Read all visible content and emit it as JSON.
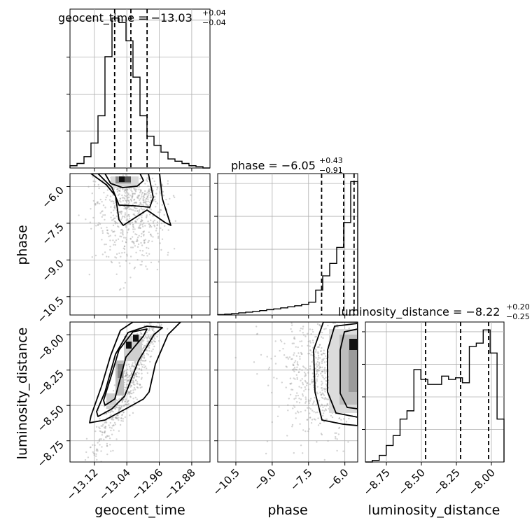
{
  "chart_data": {
    "type": "corner",
    "parameters": [
      "geocent_time",
      "phase",
      "luminosity_distance"
    ],
    "titles": [
      {
        "param": "geocent_time",
        "text": "geocent_time = −13.03",
        "upper": "+0.04",
        "lower": "−0.04"
      },
      {
        "param": "phase",
        "text": "phase = −6.05",
        "upper": "+0.43",
        "lower": "−0.91"
      },
      {
        "param": "luminosity_distance",
        "text": "luminosity_distance = −8.22",
        "upper": "+0.20",
        "lower": "−0.25"
      }
    ],
    "ranges": {
      "geocent_time": [
        -13.18,
        -12.835
      ],
      "phase": [
        -11.25,
        -5.47
      ],
      "luminosity_distance": [
        -8.9,
        -7.91
      ]
    },
    "ticks": {
      "geocent_time": {
        "values": [
          -13.12,
          -13.04,
          -12.96,
          -12.88
        ],
        "labels": [
          "−13.12",
          "−13.04",
          "−12.96",
          "−12.88"
        ]
      },
      "phase": {
        "values": [
          -10.5,
          -9.0,
          -7.5,
          -6.0
        ],
        "labels": [
          "−10.5",
          "−9.0",
          "−7.5",
          "−6.0"
        ]
      },
      "luminosity_distance": {
        "values": [
          -8.75,
          -8.5,
          -8.25,
          -8.0
        ],
        "labels": [
          "−8.75",
          "−8.50",
          "−8.25",
          "−8.00"
        ]
      }
    },
    "histograms": {
      "geocent_time": {
        "bin_edges": [
          -13.18,
          -13.1627,
          -13.1455,
          -13.1283,
          -13.111,
          -13.0938,
          -13.0765,
          -13.0593,
          -13.042,
          -13.0248,
          -13.0075,
          -12.9903,
          -12.973,
          -12.9558,
          -12.9385,
          -12.9213,
          -12.904,
          -12.8868,
          -12.8695,
          -12.8523,
          -12.835
        ],
        "counts": [
          0.5,
          1.0,
          2.5,
          5.5,
          11.5,
          24.5,
          33.0,
          32.0,
          28.0,
          20.0,
          11.5,
          7.0,
          5.0,
          3.5,
          2.0,
          1.5,
          1.0,
          0.5,
          0.3,
          0.0
        ],
        "quantiles": [
          -13.07,
          -13.03,
          -12.99
        ]
      },
      "phase": {
        "bin_edges": [
          -11.25,
          -10.961,
          -10.672,
          -10.383,
          -10.094,
          -9.805,
          -9.516,
          -9.227,
          -8.938,
          -8.649,
          -8.36,
          -8.071,
          -7.782,
          -7.493,
          -7.204,
          -6.915,
          -6.626,
          -6.337,
          -6.048,
          -5.759,
          -5.47
        ],
        "counts": [
          0.2,
          0.5,
          0.8,
          1.2,
          1.6,
          2.0,
          2.5,
          3.0,
          3.4,
          4.0,
          4.6,
          5.2,
          6.0,
          7.2,
          14.0,
          22.0,
          29.0,
          38.0,
          52.0,
          75.0
        ],
        "quantiles": [
          -6.96,
          -6.05,
          -5.62
        ]
      },
      "luminosity_distance": {
        "bin_edges": [
          -8.9,
          -8.8505,
          -8.801,
          -8.7515,
          -8.702,
          -8.6525,
          -8.603,
          -8.5535,
          -8.504,
          -8.4545,
          -8.405,
          -8.3555,
          -8.306,
          -8.2565,
          -8.207,
          -8.1575,
          -8.108,
          -8.0585,
          -8.009,
          -7.9595,
          -7.91
        ],
        "counts": [
          0.0,
          0.5,
          2.0,
          5.0,
          8.0,
          13.0,
          15.5,
          28.0,
          25.0,
          23.5,
          23.5,
          26.0,
          25.0,
          25.5,
          24.0,
          35.0,
          36.0,
          40.0,
          33.0,
          13.0
        ],
        "quantiles": [
          -8.47,
          -8.22,
          -8.02
        ]
      }
    },
    "grid": true,
    "scatter_color": "#9e9e9e"
  }
}
